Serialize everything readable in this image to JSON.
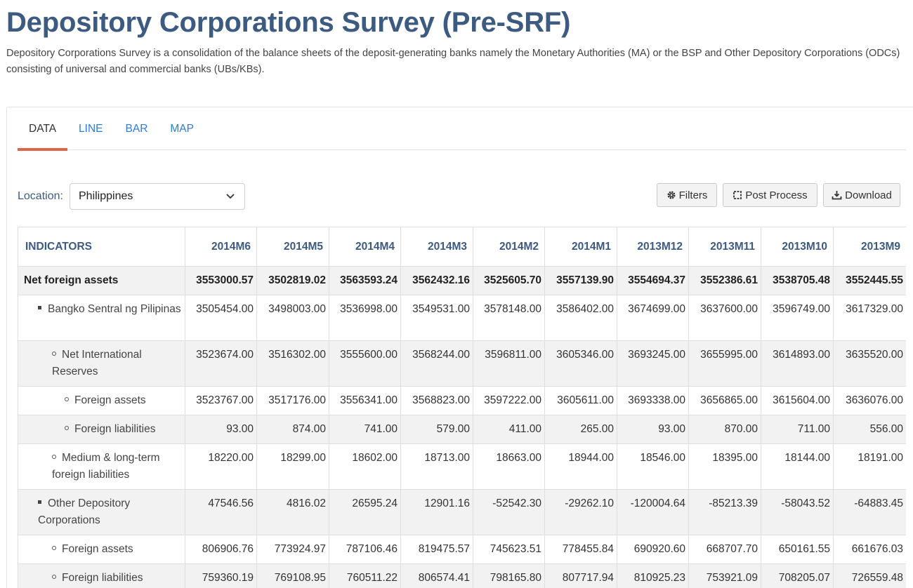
{
  "page": {
    "title": "Depository Corporations Survey (Pre-SRF)",
    "description": "Depository Corporations Survey is a consolidation of the balance sheets of the deposit-generating banks namely the Monetary Authorities (MA) or the BSP and Other Depository Corporations (ODCs) consisting of universal and commercial banks (UBs/KBs)."
  },
  "tabs": [
    {
      "label": "DATA",
      "active": true
    },
    {
      "label": "LINE",
      "active": false
    },
    {
      "label": "BAR",
      "active": false
    },
    {
      "label": "MAP",
      "active": false
    }
  ],
  "filters": {
    "location_label": "Location:",
    "location_value": "Philippines"
  },
  "toolbar": {
    "filters_label": "Filters",
    "post_process_label": "Post Process",
    "download_label": "Download"
  },
  "table": {
    "header_indicator": "INDICATORS",
    "columns": [
      "2014M6",
      "2014M5",
      "2014M4",
      "2014M3",
      "2014M2",
      "2014M1",
      "2013M12",
      "2013M11",
      "2013M10",
      "2013M9"
    ],
    "rows": [
      {
        "label": "Net foreign assets",
        "level": 0,
        "values": [
          "3553000.57",
          "3502819.02",
          "3563593.24",
          "3562432.16",
          "3525605.70",
          "3557139.90",
          "3554694.37",
          "3552386.61",
          "3538705.48",
          "3552445.55"
        ]
      },
      {
        "label": "Bangko Sentral ng Pilipinas",
        "level": 1,
        "values": [
          "3505454.00",
          "3498003.00",
          "3536998.00",
          "3549531.00",
          "3578148.00",
          "3586402.00",
          "3674699.00",
          "3637600.00",
          "3596749.00",
          "3617329.00"
        ]
      },
      {
        "label": "Net International Reserves",
        "level": 2,
        "values": [
          "3523674.00",
          "3516302.00",
          "3555600.00",
          "3568244.00",
          "3596811.00",
          "3605346.00",
          "3693245.00",
          "3655995.00",
          "3614893.00",
          "3635520.00"
        ]
      },
      {
        "label": "Foreign assets",
        "level": 3,
        "values": [
          "3523767.00",
          "3517176.00",
          "3556341.00",
          "3568823.00",
          "3597222.00",
          "3605611.00",
          "3693338.00",
          "3656865.00",
          "3615604.00",
          "3636076.00"
        ]
      },
      {
        "label": "Foreign liabilities",
        "level": 3,
        "values": [
          "93.00",
          "874.00",
          "741.00",
          "579.00",
          "411.00",
          "265.00",
          "93.00",
          "870.00",
          "711.00",
          "556.00"
        ]
      },
      {
        "label": "Medium & long-term foreign liabilities",
        "level": 2,
        "values": [
          "18220.00",
          "18299.00",
          "18602.00",
          "18713.00",
          "18663.00",
          "18944.00",
          "18546.00",
          "18395.00",
          "18144.00",
          "18191.00"
        ]
      },
      {
        "label": "Other Depository Corporations",
        "level": 1,
        "values": [
          "47546.56",
          "4816.02",
          "26595.24",
          "12901.16",
          "-52542.30",
          "-29262.10",
          "-120004.64",
          "-85213.39",
          "-58043.52",
          "-64883.45"
        ]
      },
      {
        "label": "Foreign assets",
        "level": 2,
        "values": [
          "806906.76",
          "773924.97",
          "787106.46",
          "819475.57",
          "745623.51",
          "778455.84",
          "690920.60",
          "668707.70",
          "650161.55",
          "661676.03"
        ]
      },
      {
        "label": "Foreign liabilities",
        "level": 2,
        "values": [
          "759360.19",
          "769108.95",
          "760511.22",
          "806574.41",
          "798165.80",
          "807717.94",
          "810925.23",
          "753921.09",
          "708205.07",
          "726559.48"
        ]
      }
    ]
  },
  "colors": {
    "title": "#3d5a80",
    "tab_link": "#2e7bd6",
    "tab_active_underline": "#e0644a",
    "row_shade": "#f2f2f2"
  }
}
